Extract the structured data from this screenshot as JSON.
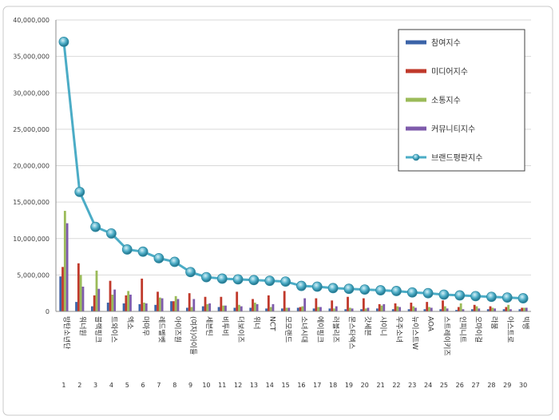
{
  "chart_data": {
    "type": "bar",
    "title": "",
    "xlabel": "",
    "ylabel": "",
    "ylim": [
      0,
      40000000
    ],
    "y_ticks": [
      "0",
      "5,000,000",
      "10,000,000",
      "15,000,000",
      "20,000,000",
      "25,000,000",
      "30,000,000",
      "35,000,000",
      "40,000,000"
    ],
    "grid": true,
    "legend_position": "top-right",
    "ranks": [
      1,
      2,
      3,
      4,
      5,
      6,
      7,
      8,
      9,
      10,
      11,
      12,
      13,
      14,
      15,
      16,
      17,
      18,
      19,
      20,
      21,
      22,
      23,
      24,
      25,
      26,
      27,
      28,
      29,
      30
    ],
    "categories": [
      "방탄소년단",
      "워너원",
      "블랙핑크",
      "트와이스",
      "엑소",
      "마마무",
      "레드벨벳",
      "아이즈원",
      "(여자)아이들",
      "세븐틴",
      "비투비",
      "더보이즈",
      "위너",
      "NCT",
      "모모랜드",
      "소녀시대",
      "에이핑크",
      "러블리즈",
      "몬스타엑스",
      "갓세븐",
      "샤이니",
      "우주소녀",
      "뉴이스트W",
      "AOA",
      "스트레이키즈",
      "인피니트",
      "오마이걸",
      "라붐",
      "아스트로",
      "빅뱅"
    ],
    "series": [
      {
        "name": "참여지수",
        "kind": "bar",
        "color": "#3b63a8",
        "values": [
          4800000,
          1300000,
          700000,
          1200000,
          1100000,
          1000000,
          900000,
          1400000,
          500000,
          700000,
          600000,
          500000,
          500000,
          400000,
          400000,
          500000,
          400000,
          400000,
          300000,
          300000,
          400000,
          300000,
          300000,
          300000,
          300000,
          200000,
          300000,
          300000,
          300000,
          300000
        ]
      },
      {
        "name": "미디어지수",
        "kind": "bar",
        "color": "#c0392b",
        "values": [
          6100000,
          6600000,
          2200000,
          4200000,
          2200000,
          4500000,
          2700000,
          1400000,
          2500000,
          2000000,
          2000000,
          2700000,
          1700000,
          2200000,
          2800000,
          600000,
          1800000,
          1500000,
          2000000,
          1800000,
          1000000,
          1100000,
          1200000,
          1300000,
          1500000,
          600000,
          900000,
          700000,
          600000,
          500000
        ]
      },
      {
        "name": "소통지수",
        "kind": "bar",
        "color": "#9bbb59",
        "values": [
          13800000,
          5000000,
          5600000,
          2300000,
          2800000,
          1200000,
          1900000,
          2100000,
          600000,
          1000000,
          800000,
          900000,
          1200000,
          600000,
          500000,
          700000,
          600000,
          400000,
          500000,
          400000,
          800000,
          700000,
          700000,
          600000,
          700000,
          1100000,
          700000,
          500000,
          900000,
          500000
        ]
      },
      {
        "name": "커뮤니티지수",
        "kind": "bar",
        "color": "#7e5bab",
        "values": [
          12100000,
          3400000,
          3100000,
          3000000,
          2300000,
          1100000,
          1800000,
          1700000,
          1700000,
          1100000,
          800000,
          700000,
          1000000,
          1000000,
          500000,
          1800000,
          600000,
          700000,
          400000,
          500000,
          1000000,
          600000,
          500000,
          500000,
          400000,
          300000,
          400000,
          400000,
          300000,
          500000
        ]
      },
      {
        "name": "브랜드평판지수",
        "kind": "line",
        "color": "#4bacc6",
        "values": [
          37000000,
          16400000,
          11600000,
          10700000,
          8500000,
          8200000,
          7300000,
          6800000,
          5400000,
          4700000,
          4500000,
          4400000,
          4300000,
          4200000,
          4100000,
          3500000,
          3400000,
          3200000,
          3100000,
          3000000,
          2900000,
          2800000,
          2600000,
          2500000,
          2300000,
          2200000,
          2100000,
          2000000,
          1900000,
          1800000
        ]
      }
    ]
  }
}
